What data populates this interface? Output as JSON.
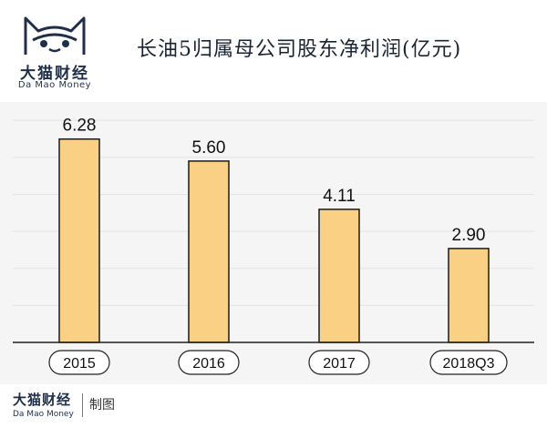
{
  "logo": {
    "name_cn": "大猫财经",
    "name_en": "Da Mao Money"
  },
  "title": "长油5归属母公司股东净利润(亿元)",
  "footer": {
    "logo_cn": "大猫财经",
    "logo_en": "Da Mao Money",
    "credit": "制图"
  },
  "colors": {
    "bar_fill": "#f9d084",
    "bar_stroke": "#1a1a1a",
    "label_box_fill": "#ffffff",
    "background": "#f5f5f5",
    "axis": "#222222"
  },
  "chart_data": {
    "type": "bar",
    "categories": [
      "2015",
      "2016",
      "2017",
      "2018Q3"
    ],
    "values": [
      6.28,
      5.6,
      4.11,
      2.9
    ],
    "data_labels": [
      "6.28",
      "5.60",
      "4.11",
      "2.90"
    ],
    "title": "长油5归属母公司股东净利润(亿元)",
    "xlabel": "",
    "ylabel": "",
    "ylim": [
      0,
      7.2
    ],
    "grid": true,
    "legend": "none"
  }
}
